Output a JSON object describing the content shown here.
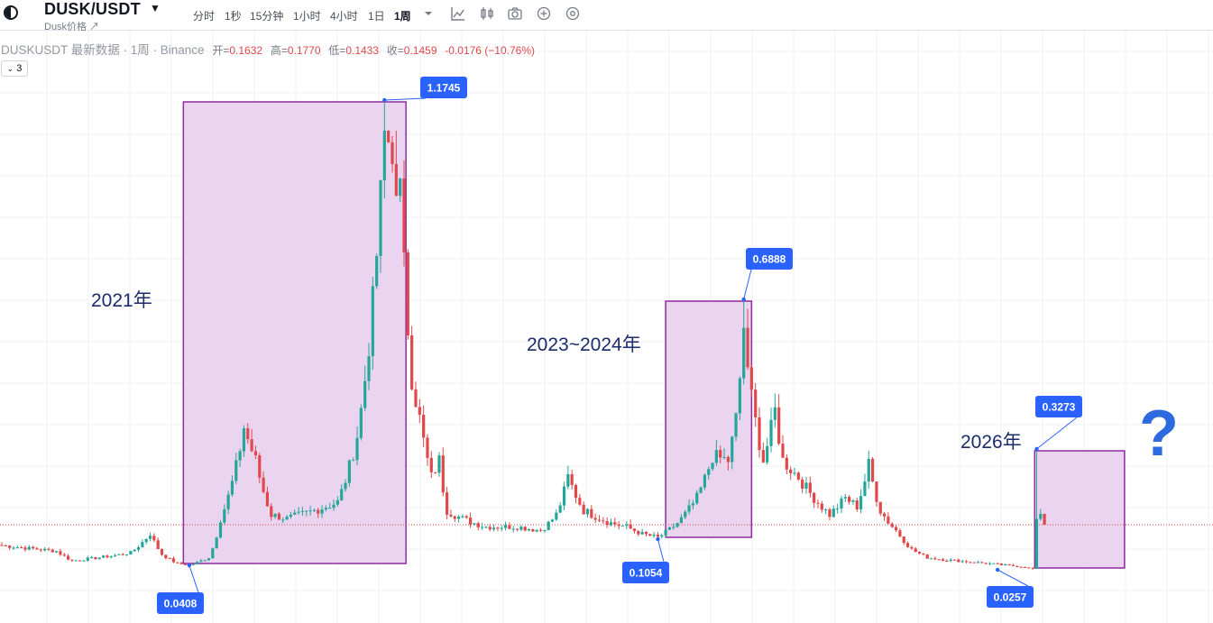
{
  "header": {
    "symbol": "DUSK/USDT",
    "subname": "Dusk价格 ↗",
    "intervals": [
      "分时",
      "1秒",
      "15分钟",
      "1小时",
      "4小时",
      "1日",
      "1周"
    ],
    "active_interval": "1周"
  },
  "infobar": {
    "title": "DUSKUSDT 最新数据 · 1周 · Binance",
    "open_label": "开=",
    "open": "0.1632",
    "high_label": "高=",
    "high": "0.1770",
    "low_label": "低=",
    "low": "0.1433",
    "close_label": "收=",
    "close": "0.1459",
    "change": "-0.0176 (−10.76%)"
  },
  "collapse_button": "3",
  "annotations": {
    "label_2021": "2021年",
    "label_2023": "2023~2024年",
    "label_2026": "2026年",
    "question_mark": "?"
  },
  "colors": {
    "up": "#26a69a",
    "down": "#e0484a",
    "box_fill": "#e9d2ef",
    "box_border": "#8e2c9e",
    "callout": "#2962ff",
    "annotation_text": "#1c2b6b",
    "question": "#2d6ae0"
  },
  "chart_data": {
    "type": "candlestick",
    "timeframe": "1周",
    "series": [
      {
        "name": "DUSKUSDT",
        "key_levels": [
          {
            "label": "0.0408",
            "value": 0.0408,
            "kind": "low"
          },
          {
            "label": "1.1745",
            "value": 1.1745,
            "kind": "high"
          },
          {
            "label": "0.1054",
            "value": 0.1054,
            "kind": "low"
          },
          {
            "label": "0.6888",
            "value": 0.6888,
            "kind": "high"
          },
          {
            "label": "0.0257",
            "value": 0.0257,
            "kind": "low"
          },
          {
            "label": "0.3273",
            "value": 0.3273,
            "kind": "high"
          }
        ]
      }
    ],
    "last_price": 0.1459,
    "anchors": [
      [
        0,
        0.09
      ],
      [
        14,
        0.076
      ],
      [
        18,
        0.052
      ],
      [
        28,
        0.064
      ],
      [
        33,
        0.072
      ],
      [
        38,
        0.12
      ],
      [
        41,
        0.068
      ],
      [
        45,
        0.045
      ],
      [
        48,
        0.041
      ],
      [
        53,
        0.06
      ],
      [
        56,
        0.16
      ],
      [
        62,
        0.38
      ],
      [
        65,
        0.3
      ],
      [
        69,
        0.17
      ],
      [
        73,
        0.16
      ],
      [
        80,
        0.18
      ],
      [
        86,
        0.2
      ],
      [
        91,
        0.36
      ],
      [
        94,
        0.58
      ],
      [
        98,
        1.1
      ],
      [
        102,
        0.95
      ],
      [
        105,
        0.5
      ],
      [
        107,
        0.4
      ],
      [
        110,
        0.26
      ],
      [
        112,
        0.3
      ],
      [
        114,
        0.18
      ],
      [
        118,
        0.16
      ],
      [
        124,
        0.14
      ],
      [
        132,
        0.14
      ],
      [
        138,
        0.13
      ],
      [
        142,
        0.17
      ],
      [
        145,
        0.26
      ],
      [
        149,
        0.18
      ],
      [
        156,
        0.15
      ],
      [
        160,
        0.14
      ],
      [
        164,
        0.12
      ],
      [
        168,
        0.11
      ],
      [
        174,
        0.16
      ],
      [
        178,
        0.21
      ],
      [
        182,
        0.31
      ],
      [
        186,
        0.3
      ],
      [
        188,
        0.4
      ],
      [
        190,
        0.62
      ],
      [
        192,
        0.45
      ],
      [
        195,
        0.3
      ],
      [
        198,
        0.42
      ],
      [
        200,
        0.3
      ],
      [
        204,
        0.26
      ],
      [
        208,
        0.21
      ],
      [
        212,
        0.17
      ],
      [
        216,
        0.21
      ],
      [
        219,
        0.19
      ],
      [
        222,
        0.29
      ],
      [
        225,
        0.18
      ],
      [
        229,
        0.13
      ],
      [
        233,
        0.08
      ],
      [
        237,
        0.06
      ],
      [
        241,
        0.055
      ],
      [
        247,
        0.05
      ],
      [
        253,
        0.045
      ],
      [
        258,
        0.04
      ],
      [
        262,
        0.035
      ],
      [
        264,
        0.03
      ],
      [
        265,
        0.16
      ],
      [
        266,
        0.17
      ],
      [
        267,
        0.1459
      ]
    ]
  }
}
